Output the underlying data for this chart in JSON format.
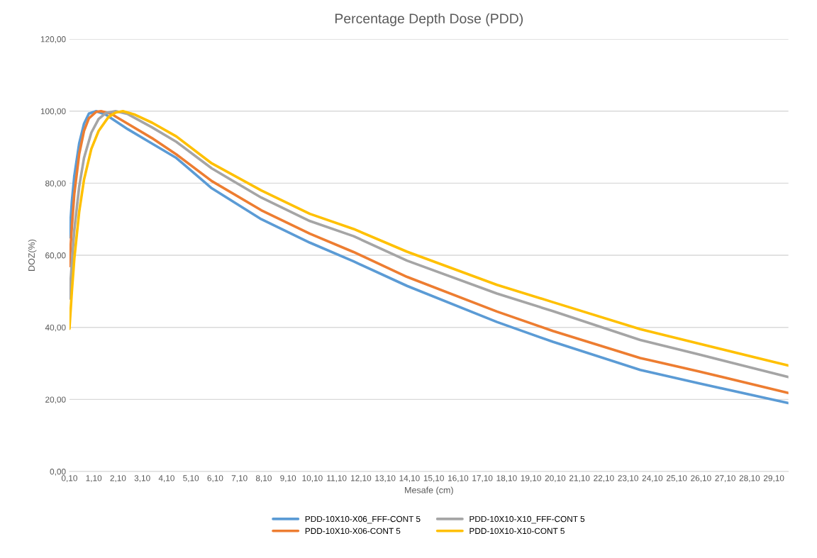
{
  "chart_data": {
    "type": "line",
    "title": "Percentage Depth Dose (PDD)",
    "xlabel": "Mesafe (cm)",
    "ylabel": "DOZ(%)",
    "series": [
      {
        "name": "PDD-10X10-X06_FFF-CONT 5",
        "color": "#5b9bd5",
        "x": [
          0.1,
          0.2,
          0.3,
          0.5,
          0.7,
          0.9,
          1.2,
          1.6,
          2.5,
          3.5,
          4.5,
          5.96,
          8,
          10,
          11.8,
          14,
          17.7,
          20,
          23.6,
          26,
          29.7
        ],
        "values": [
          65,
          75,
          82,
          91,
          96.5,
          99.3,
          100,
          99,
          95,
          91,
          87,
          78.6,
          70,
          63.5,
          58.3,
          51.5,
          41.5,
          36,
          28.2,
          24.5,
          19.0
        ]
      },
      {
        "name": "PDD-10X10-X06-CONT 5",
        "color": "#ed7d31",
        "x": [
          0.1,
          0.2,
          0.3,
          0.5,
          0.7,
          0.9,
          1.2,
          1.4,
          1.8,
          2.5,
          3.5,
          4.5,
          5.96,
          8,
          10,
          11.8,
          14,
          17.7,
          20,
          23.6,
          26,
          29.7
        ],
        "values": [
          57,
          68,
          77,
          88,
          94.5,
          98,
          99.8,
          100,
          99.3,
          96.5,
          92.5,
          88,
          80.6,
          72.5,
          66,
          60.9,
          54,
          44.4,
          39,
          31.5,
          27.8,
          21.8
        ]
      },
      {
        "name": "PDD-10X10-X10_FFF-CONT 5",
        "color": "#a5a5a5",
        "x": [
          0.1,
          0.2,
          0.3,
          0.5,
          0.7,
          1.0,
          1.3,
          1.6,
          2.0,
          2.5,
          3.5,
          4.5,
          5.96,
          8,
          10,
          11.8,
          14,
          17.7,
          20,
          23.6,
          26,
          29.7
        ],
        "values": [
          48,
          58,
          67,
          79,
          87,
          94,
          97.8,
          99.5,
          100,
          99.2,
          95.5,
          91.5,
          84.1,
          76,
          69.5,
          65.3,
          58.5,
          49.4,
          44.5,
          36.5,
          32.5,
          26.2
        ]
      },
      {
        "name": "PDD-10X10-X10-CONT 5",
        "color": "#ffc000",
        "x": [
          0.1,
          0.2,
          0.3,
          0.5,
          0.7,
          1.0,
          1.3,
          1.7,
          2.0,
          2.3,
          2.8,
          3.5,
          4.5,
          5.96,
          8,
          10,
          11.8,
          14,
          17.7,
          20,
          23.6,
          26,
          29.7
        ],
        "values": [
          39.6,
          50,
          59,
          72,
          81,
          89.5,
          94.5,
          98.3,
          99.6,
          100,
          99,
          96.8,
          93,
          85.5,
          78,
          71.5,
          67.3,
          61,
          51.8,
          47,
          39.5,
          35.5,
          29.4
        ]
      }
    ],
    "xlim": [
      0.1,
      29.7
    ],
    "xticks": [
      {
        "value": 0.1,
        "label": "0,10"
      },
      {
        "value": 1.1,
        "label": "1,10"
      },
      {
        "value": 2.1,
        "label": "2,10"
      },
      {
        "value": 3.1,
        "label": "3,10"
      },
      {
        "value": 4.1,
        "label": "4,10"
      },
      {
        "value": 5.1,
        "label": "5,10"
      },
      {
        "value": 6.1,
        "label": "6,10"
      },
      {
        "value": 7.1,
        "label": "7,10"
      },
      {
        "value": 8.1,
        "label": "8,10"
      },
      {
        "value": 9.1,
        "label": "9,10"
      },
      {
        "value": 10.1,
        "label": "10,10"
      },
      {
        "value": 11.1,
        "label": "11,10"
      },
      {
        "value": 12.1,
        "label": "12,10"
      },
      {
        "value": 13.1,
        "label": "13,10"
      },
      {
        "value": 14.1,
        "label": "14,10"
      },
      {
        "value": 15.1,
        "label": "15,10"
      },
      {
        "value": 16.1,
        "label": "16,10"
      },
      {
        "value": 17.1,
        "label": "17,10"
      },
      {
        "value": 18.1,
        "label": "18,10"
      },
      {
        "value": 19.1,
        "label": "19,10"
      },
      {
        "value": 20.1,
        "label": "20,10"
      },
      {
        "value": 21.1,
        "label": "21,10"
      },
      {
        "value": 22.1,
        "label": "22,10"
      },
      {
        "value": 23.1,
        "label": "23,10"
      },
      {
        "value": 24.1,
        "label": "24,10"
      },
      {
        "value": 25.1,
        "label": "25,10"
      },
      {
        "value": 26.1,
        "label": "26,10"
      },
      {
        "value": 27.1,
        "label": "27,10"
      },
      {
        "value": 28.1,
        "label": "28,10"
      },
      {
        "value": 29.1,
        "label": "29,10"
      }
    ],
    "ylim": [
      0,
      120
    ],
    "yticks": [
      {
        "value": 0,
        "label": "0,00"
      },
      {
        "value": 20,
        "label": "20,00"
      },
      {
        "value": 40,
        "label": "40,00"
      },
      {
        "value": 60,
        "label": "60,00"
      },
      {
        "value": 80,
        "label": "80,00"
      },
      {
        "value": 100,
        "label": "100,00"
      },
      {
        "value": 120,
        "label": "120,00"
      }
    ],
    "grid": "y",
    "legend": "bottom",
    "marker": "none",
    "line_style": "solid"
  }
}
